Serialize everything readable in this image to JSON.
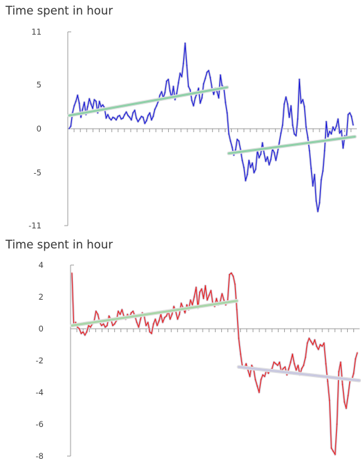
{
  "chart_data": [
    {
      "type": "line",
      "title": "Time spent in hour",
      "xlabel": "",
      "ylabel": "",
      "ylim": [
        -11,
        11
      ],
      "yticks": [
        11,
        5,
        0,
        -5,
        -11
      ],
      "grid": false,
      "colors": {
        "series": "#1f1fd6",
        "trend": "#8fd0a8"
      },
      "series": [
        {
          "values": [
            0,
            0.3,
            1.8,
            2.6,
            3.1,
            3.8,
            2.9,
            1.3,
            2.2,
            3.0,
            1.6,
            2.5,
            3.4,
            2.8,
            2.3,
            3.3,
            3.1,
            1.8,
            3.1,
            2.5,
            2.7,
            2.4,
            1.2,
            1.6,
            1.2,
            1.0,
            1.3,
            1.2,
            1.0,
            1.4,
            1.5,
            1.1,
            1.2,
            1.6,
            1.9,
            1.5,
            1.3,
            1.0,
            1.8,
            2.1,
            1.2,
            0.8,
            1.1,
            1.4,
            1.3,
            0.6,
            0.9,
            1.5,
            1.8,
            1.0,
            1.4,
            2.2,
            2.6,
            3.1,
            3.8,
            4.2,
            3.5,
            4.1,
            5.4,
            5.6,
            4.3,
            3.5,
            4.8,
            3.3,
            4.0,
            5.2,
            6.3,
            5.9,
            7.4,
            9.7,
            7.2,
            4.8,
            4.4,
            3.2,
            2.6,
            3.5,
            4.0,
            4.6,
            2.9,
            3.5,
            5.1,
            5.7,
            6.4,
            6.6,
            5.8,
            4.6,
            3.9,
            4.6,
            4.2,
            3.5,
            6.1,
            4.9,
            4.7,
            3.0,
            1.8,
            -0.6,
            -1.4,
            -2.1,
            -3.0,
            -2.4,
            -1.2,
            -1.4,
            -2.4,
            -3.6,
            -4.4,
            -5.9,
            -5.2,
            -3.6,
            -4.4,
            -3.9,
            -5.0,
            -4.6,
            -2.5,
            -3.3,
            -2.9,
            -1.6,
            -2.8,
            -3.7,
            -3.2,
            -4.1,
            -3.5,
            -2.3,
            -2.7,
            -3.6,
            -2.7,
            -1.6,
            -0.5,
            0.4,
            2.8,
            3.6,
            2.8,
            1.3,
            2.6,
            0.4,
            -0.6,
            -0.8,
            1.1,
            5.6,
            2.9,
            3.3,
            2.5,
            0.2,
            -1.0,
            -2.5,
            -4.5,
            -6.5,
            -5.2,
            -8.2,
            -9.4,
            -8.4,
            -5.8,
            -4.8,
            -2.5,
            0.8,
            -0.9,
            -0.3,
            -0.6,
            0.2,
            -0.2,
            0.3,
            1.1,
            -0.5,
            -0.2,
            -2.2,
            -0.8,
            -1.0,
            1.6,
            1.8,
            1.4,
            0.4
          ]
        }
      ],
      "trendlines": [
        {
          "x": [
            0,
            94
          ],
          "y": [
            1.5,
            4.7
          ]
        },
        {
          "x": [
            95,
            170
          ],
          "y": [
            -2.8,
            -0.9
          ]
        }
      ]
    },
    {
      "type": "line",
      "title": "Time spent in hour",
      "xlabel": "",
      "ylabel": "",
      "ylim": [
        -8,
        4
      ],
      "yticks": [
        4,
        2,
        0,
        -2,
        -4,
        -6,
        -8
      ],
      "grid": false,
      "colors": {
        "series": "#e62424",
        "trend1": "#a8d6a8",
        "trend2": "#c8c8e0"
      },
      "series": [
        {
          "values": [
            3.5,
            0.2,
            0.4,
            0.1,
            0,
            -0.3,
            -0.2,
            -0.4,
            -0.2,
            0.2,
            0.1,
            0.3,
            0.5,
            1.1,
            0.9,
            0.4,
            0.2,
            0.3,
            0.1,
            0.2,
            0.8,
            0.6,
            0.2,
            0.3,
            0.5,
            1.1,
            0.9,
            1.2,
            0.8,
            0.6,
            0.9,
            0.7,
            1.0,
            1.1,
            0.8,
            0.4,
            0.1,
            0.6,
            1.0,
            0.8,
            0.2,
            0.4,
            -0.2,
            -0.3,
            0.3,
            0.6,
            0.2,
            0.5,
            0.9,
            0.4,
            0.7,
            0.8,
            1.1,
            0.6,
            0.9,
            1.4,
            1.1,
            0.6,
            0.9,
            1.6,
            1.3,
            1.0,
            1.5,
            1.2,
            1.8,
            1.5,
            2.0,
            2.6,
            1.3,
            2.3,
            2.5,
            1.9,
            2.7,
            1.8,
            2.1,
            2.4,
            1.6,
            1.4,
            1.9,
            1.5,
            1.7,
            2.2,
            1.8,
            1.5,
            1.7,
            3.4,
            3.5,
            3.3,
            2.8,
            1.2,
            -0.6,
            -1.6,
            -2.4,
            -2.5,
            -2.2,
            -2.6,
            -3.0,
            -2.3,
            -2.5,
            -3.2,
            -3.6,
            -4.0,
            -3.2,
            -2.9,
            -3.0,
            -2.6,
            -2.8,
            -2.6,
            -2.5,
            -2.1,
            -2.2,
            -2.3,
            -2.1,
            -2.7,
            -2.5,
            -2.4,
            -2.9,
            -2.5,
            -2.1,
            -1.6,
            -2.2,
            -2.6,
            -2.3,
            -2.9,
            -2.5,
            -2.3,
            -1.8,
            -0.9,
            -0.6,
            -0.8,
            -1.0,
            -0.7,
            -1.1,
            -1.3,
            -1.0,
            -1.1,
            -0.9,
            -2.2,
            -3.3,
            -4.5,
            -7.5,
            -7.7,
            -7.9,
            -6.0,
            -2.7,
            -2.1,
            -3.5,
            -4.6,
            -5.0,
            -4.2,
            -3.3,
            -3.2,
            -2.8,
            -1.9,
            -1.5
          ]
        }
      ],
      "trendlines": [
        {
          "x": [
            0,
            89
          ],
          "y": [
            0.2,
            1.75
          ]
        },
        {
          "x": [
            90,
            155
          ],
          "y": [
            -2.4,
            -3.25
          ]
        }
      ]
    }
  ]
}
